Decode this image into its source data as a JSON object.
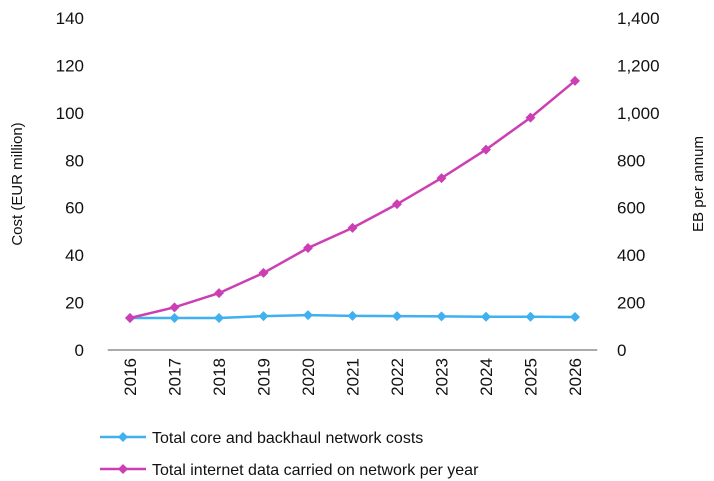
{
  "chart_data": {
    "type": "line",
    "categories": [
      "2016",
      "2017",
      "2018",
      "2019",
      "2020",
      "2021",
      "2022",
      "2023",
      "2024",
      "2025",
      "2026"
    ],
    "y_left": {
      "label": "Cost (EUR million)",
      "ticks": [
        "0",
        "20",
        "40",
        "60",
        "80",
        "100",
        "120",
        "140"
      ],
      "ylim": [
        0,
        140
      ]
    },
    "y_right": {
      "label": "EB per annum",
      "ticks": [
        "0",
        "200",
        "400",
        "600",
        "800",
        "1,000",
        "1,200",
        "1,400"
      ],
      "ylim": [
        0,
        1400
      ]
    },
    "series": [
      {
        "name": "Total core and backhaul network costs",
        "axis": "left",
        "color": "#3fb0f0",
        "values": [
          13.5,
          13.5,
          13.5,
          14.3,
          14.7,
          14.4,
          14.3,
          14.2,
          14.0,
          14.0,
          13.9
        ]
      },
      {
        "name": "Total internet data carried on network per year",
        "axis": "right",
        "color": "#cc3fb4",
        "values": [
          135,
          180,
          240,
          325,
          430,
          515,
          615,
          725,
          845,
          980,
          1135
        ]
      }
    ],
    "grid": false,
    "legend_position": "bottom"
  }
}
